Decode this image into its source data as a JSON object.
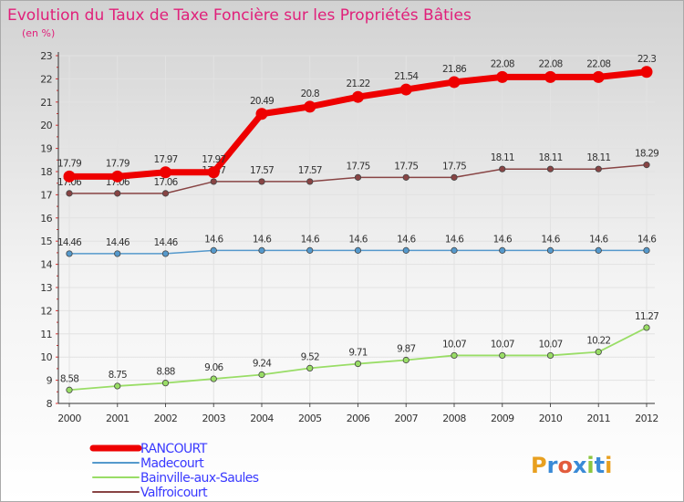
{
  "chart_data": {
    "type": "line",
    "title": "Evolution du Taux de Taxe Foncière sur les Propriétés Bâties",
    "subtitle": "(en %)",
    "x": [
      "2000",
      "2001",
      "2002",
      "2003",
      "2004",
      "2005",
      "2006",
      "2007",
      "2008",
      "2009",
      "2010",
      "2011",
      "2012"
    ],
    "ylim": [
      8,
      23
    ],
    "yticks": [
      "8",
      "9",
      "10",
      "11",
      "12",
      "13",
      "14",
      "15",
      "16",
      "17",
      "18",
      "19",
      "20",
      "21",
      "22",
      "23"
    ],
    "series": [
      {
        "name": "RANCOURT",
        "color": "#ee0000",
        "values": [
          17.79,
          17.79,
          17.97,
          17.97,
          20.49,
          20.8,
          21.22,
          21.54,
          21.86,
          22.08,
          22.08,
          22.08,
          22.3
        ],
        "labels": [
          "17.79",
          "17.79",
          "17.97",
          "17.97",
          "20.49",
          "20.8",
          "21.22",
          "21.54",
          "21.86",
          "22.08",
          "22.08",
          "22.08",
          "22.3"
        ]
      },
      {
        "name": "Madecourt",
        "color": "#5599cc",
        "values": [
          14.46,
          14.46,
          14.46,
          14.6,
          14.6,
          14.6,
          14.6,
          14.6,
          14.6,
          14.6,
          14.6,
          14.6,
          14.6
        ],
        "labels": [
          "14.46",
          "14.46",
          "14.46",
          "14.6",
          "14.6",
          "14.6",
          "14.6",
          "14.6",
          "14.6",
          "14.6",
          "14.6",
          "14.6",
          "14.6"
        ]
      },
      {
        "name": "Bainville-aux-Saules",
        "color": "#99dd66",
        "values": [
          8.58,
          8.75,
          8.88,
          9.06,
          9.24,
          9.52,
          9.71,
          9.87,
          10.07,
          10.07,
          10.07,
          10.22,
          11.27
        ],
        "labels": [
          "8.58",
          "8.75",
          "8.88",
          "9.06",
          "9.24",
          "9.52",
          "9.71",
          "9.87",
          "10.07",
          "10.07",
          "10.07",
          "10.22",
          "11.27"
        ]
      },
      {
        "name": "Valfroicourt",
        "color": "#884444",
        "values": [
          17.06,
          17.06,
          17.06,
          17.57,
          17.57,
          17.57,
          17.75,
          17.75,
          17.75,
          18.11,
          18.11,
          18.11,
          18.29
        ],
        "labels": [
          "17.06",
          "17.06",
          "17.06",
          "17.57",
          "17.57",
          "17.57",
          "17.75",
          "17.75",
          "17.75",
          "18.11",
          "18.11",
          "18.11",
          "18.29"
        ]
      }
    ]
  },
  "logo": {
    "text": "Proxiti"
  }
}
